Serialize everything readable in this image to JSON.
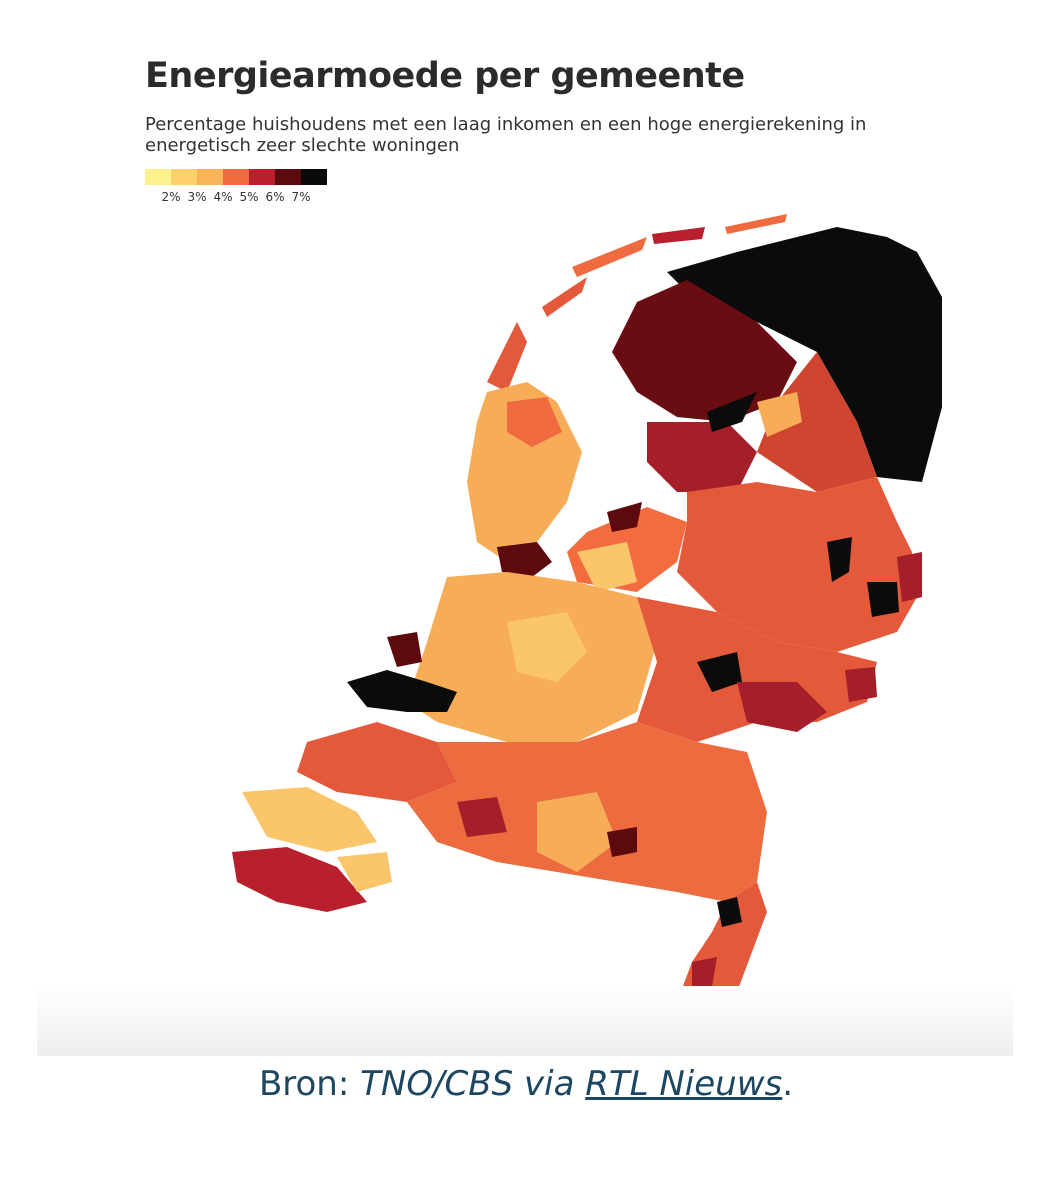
{
  "chart": {
    "title": "Energiearmoede per gemeente",
    "subtitle": "Percentage huishoudens met een laag inkomen en een hoge energierekening in energetisch zeer slechte woningen",
    "legend": {
      "colors": [
        "#fdf28c",
        "#fbd06d",
        "#f9b35a",
        "#ef6a3f",
        "#b8202d",
        "#5c0a0e",
        "#0a0a0a"
      ],
      "ticks": [
        "2%",
        "3%",
        "4%",
        "5%",
        "6%",
        "7%"
      ]
    }
  },
  "regions_colors": {
    "north_east": "#0b0b0b",
    "north": "#6a0d12",
    "north_mid": "#a41f2a",
    "middle": "#e4593a",
    "west": "#f7ac57",
    "west_light": "#fbc56c",
    "south": "#ec6b3f"
  },
  "source": {
    "prefix": "Bron: ",
    "middle": "TNO/CBS via ",
    "link": "RTL Nieuws",
    "suffix": "."
  }
}
